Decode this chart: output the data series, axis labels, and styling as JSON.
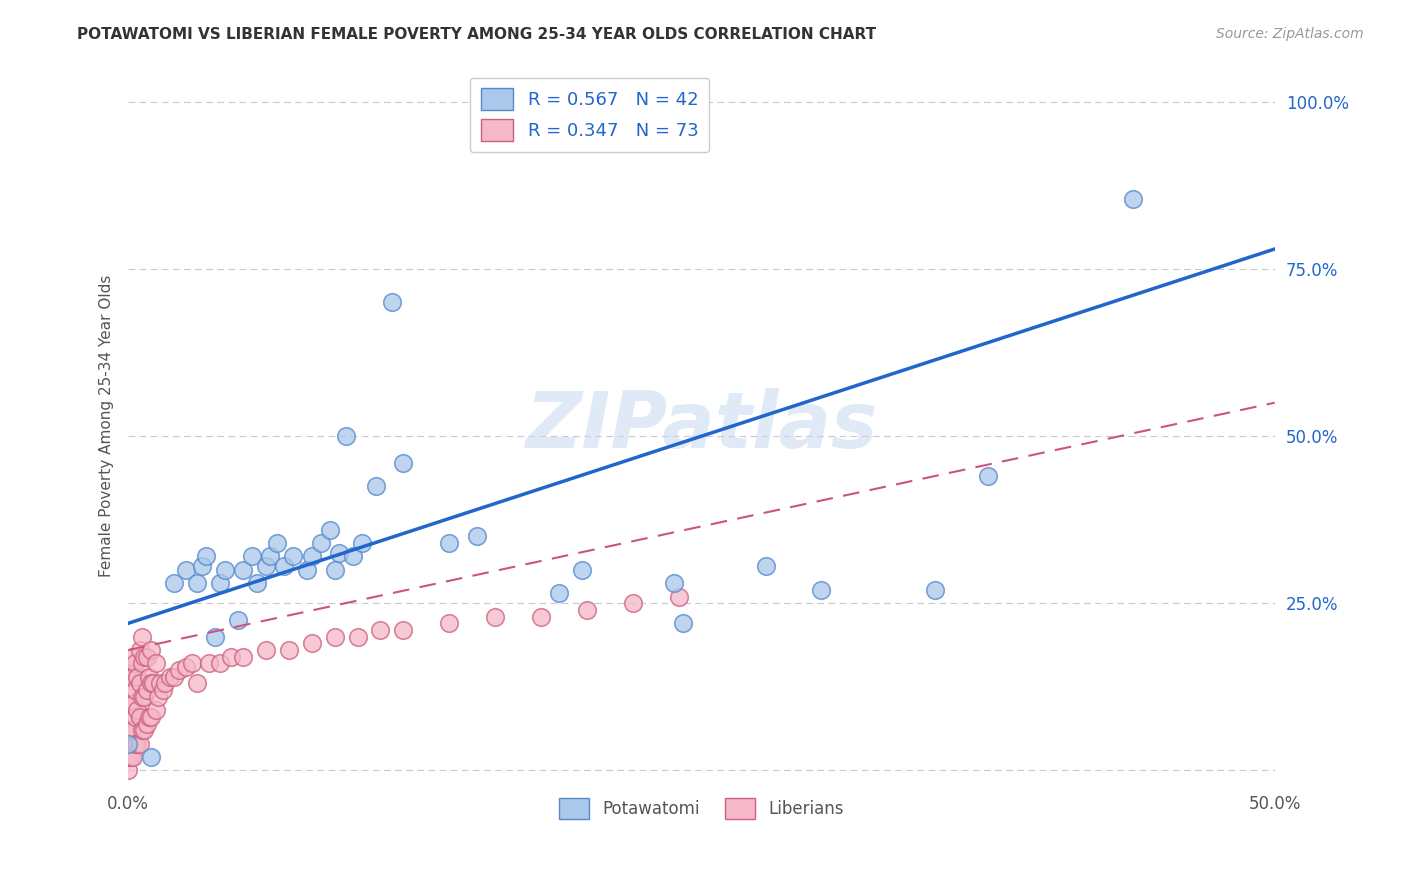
{
  "title": "POTAWATOMI VS LIBERIAN FEMALE POVERTY AMONG 25-34 YEAR OLDS CORRELATION CHART",
  "source": "Source: ZipAtlas.com",
  "ylabel": "Female Poverty Among 25-34 Year Olds",
  "xlim": [
    0.0,
    0.5
  ],
  "ylim": [
    -0.02,
    1.05
  ],
  "R_potawatomi": 0.567,
  "N_potawatomi": 42,
  "R_liberians": 0.347,
  "N_liberians": 73,
  "color_potawatomi": "#aac8ea",
  "color_liberians": "#f5b8c8",
  "edge_potawatomi": "#5588cc",
  "edge_liberians": "#cc6080",
  "line_color_potawatomi": "#2266cc",
  "line_color_liberians": "#cc5577",
  "background_color": "#ffffff",
  "grid_color": "#c8c8d8",
  "watermark": "ZIPatlas",
  "pot_x": [
    0.0,
    0.01,
    0.02,
    0.025,
    0.03,
    0.032,
    0.034,
    0.038,
    0.04,
    0.042,
    0.048,
    0.05,
    0.054,
    0.056,
    0.06,
    0.062,
    0.065,
    0.068,
    0.072,
    0.078,
    0.08,
    0.084,
    0.088,
    0.09,
    0.092,
    0.095,
    0.098,
    0.102,
    0.108,
    0.115,
    0.12,
    0.14,
    0.152,
    0.188,
    0.198,
    0.238,
    0.242,
    0.278,
    0.302,
    0.352,
    0.375,
    0.438
  ],
  "pot_y": [
    0.04,
    0.02,
    0.28,
    0.3,
    0.28,
    0.305,
    0.32,
    0.2,
    0.28,
    0.3,
    0.225,
    0.3,
    0.32,
    0.28,
    0.305,
    0.32,
    0.34,
    0.305,
    0.32,
    0.3,
    0.32,
    0.34,
    0.36,
    0.3,
    0.325,
    0.5,
    0.32,
    0.34,
    0.425,
    0.7,
    0.46,
    0.34,
    0.35,
    0.265,
    0.3,
    0.28,
    0.22,
    0.305,
    0.27,
    0.27,
    0.44,
    0.855
  ],
  "lib_x": [
    0.0,
    0.0,
    0.0,
    0.0,
    0.0,
    0.0,
    0.0,
    0.0,
    0.001,
    0.001,
    0.001,
    0.001,
    0.002,
    0.002,
    0.002,
    0.002,
    0.002,
    0.003,
    0.003,
    0.003,
    0.003,
    0.004,
    0.004,
    0.004,
    0.005,
    0.005,
    0.005,
    0.005,
    0.006,
    0.006,
    0.006,
    0.006,
    0.007,
    0.007,
    0.007,
    0.008,
    0.008,
    0.008,
    0.009,
    0.009,
    0.01,
    0.01,
    0.01,
    0.011,
    0.012,
    0.012,
    0.013,
    0.014,
    0.015,
    0.016,
    0.018,
    0.02,
    0.022,
    0.025,
    0.028,
    0.03,
    0.035,
    0.04,
    0.045,
    0.05,
    0.06,
    0.07,
    0.08,
    0.09,
    0.1,
    0.11,
    0.12,
    0.14,
    0.16,
    0.18,
    0.2,
    0.22,
    0.24
  ],
  "lib_y": [
    0.0,
    0.02,
    0.04,
    0.06,
    0.08,
    0.1,
    0.12,
    0.15,
    0.02,
    0.06,
    0.1,
    0.14,
    0.02,
    0.06,
    0.1,
    0.14,
    0.17,
    0.04,
    0.08,
    0.12,
    0.16,
    0.04,
    0.09,
    0.14,
    0.04,
    0.08,
    0.13,
    0.18,
    0.06,
    0.11,
    0.16,
    0.2,
    0.06,
    0.11,
    0.17,
    0.07,
    0.12,
    0.17,
    0.08,
    0.14,
    0.08,
    0.13,
    0.18,
    0.13,
    0.09,
    0.16,
    0.11,
    0.13,
    0.12,
    0.13,
    0.14,
    0.14,
    0.15,
    0.155,
    0.16,
    0.13,
    0.16,
    0.16,
    0.17,
    0.17,
    0.18,
    0.18,
    0.19,
    0.2,
    0.2,
    0.21,
    0.21,
    0.22,
    0.23,
    0.23,
    0.24,
    0.25,
    0.26
  ],
  "blue_line_x": [
    0.0,
    0.5
  ],
  "blue_line_y": [
    0.22,
    0.78
  ],
  "pink_line_x": [
    0.0,
    0.5
  ],
  "pink_line_y": [
    0.18,
    0.55
  ]
}
